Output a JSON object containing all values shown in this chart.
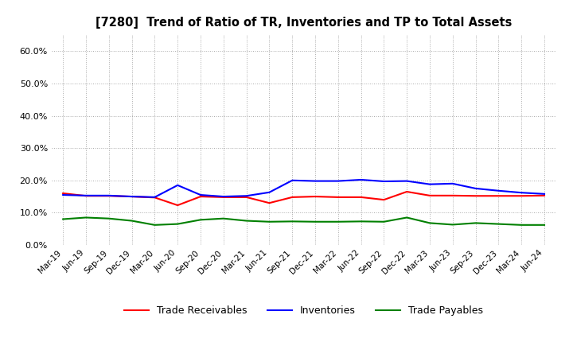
{
  "title": "[7280]  Trend of Ratio of TR, Inventories and TP to Total Assets",
  "labels": [
    "Mar-19",
    "Jun-19",
    "Sep-19",
    "Dec-19",
    "Mar-20",
    "Jun-20",
    "Sep-20",
    "Dec-20",
    "Mar-21",
    "Jun-21",
    "Sep-21",
    "Dec-21",
    "Mar-22",
    "Jun-22",
    "Sep-22",
    "Dec-22",
    "Mar-23",
    "Jun-23",
    "Sep-23",
    "Dec-23",
    "Mar-24",
    "Jun-24"
  ],
  "trade_receivables": [
    0.16,
    0.152,
    0.152,
    0.15,
    0.147,
    0.123,
    0.15,
    0.148,
    0.148,
    0.13,
    0.148,
    0.15,
    0.148,
    0.148,
    0.14,
    0.165,
    0.153,
    0.153,
    0.152,
    0.152,
    0.152,
    0.153
  ],
  "inventories": [
    0.155,
    0.153,
    0.153,
    0.15,
    0.148,
    0.185,
    0.155,
    0.15,
    0.152,
    0.163,
    0.2,
    0.198,
    0.198,
    0.202,
    0.197,
    0.198,
    0.188,
    0.19,
    0.175,
    0.168,
    0.162,
    0.158
  ],
  "trade_payables": [
    0.08,
    0.085,
    0.082,
    0.075,
    0.062,
    0.065,
    0.078,
    0.082,
    0.075,
    0.072,
    0.073,
    0.072,
    0.072,
    0.073,
    0.072,
    0.085,
    0.068,
    0.063,
    0.068,
    0.065,
    0.062,
    0.062
  ],
  "tr_color": "#ff0000",
  "inv_color": "#0000ff",
  "tp_color": "#008000",
  "ylim": [
    0.0,
    0.65
  ],
  "yticks": [
    0.0,
    0.1,
    0.2,
    0.3,
    0.4,
    0.5,
    0.6
  ],
  "background_color": "#ffffff",
  "grid_color": "#aaaaaa"
}
